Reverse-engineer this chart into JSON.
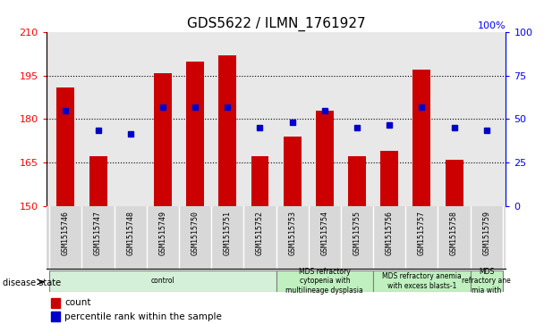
{
  "title": "GDS5622 / ILMN_1761927",
  "samples": [
    "GSM1515746",
    "GSM1515747",
    "GSM1515748",
    "GSM1515749",
    "GSM1515750",
    "GSM1515751",
    "GSM1515752",
    "GSM1515753",
    "GSM1515754",
    "GSM1515755",
    "GSM1515756",
    "GSM1515757",
    "GSM1515758",
    "GSM1515759"
  ],
  "bar_values": [
    191,
    167,
    150,
    196,
    200,
    202,
    167,
    174,
    183,
    167,
    169,
    197,
    166,
    150
  ],
  "bar_bottom": 150,
  "dot_values_left": [
    183,
    176,
    175,
    184,
    184,
    184,
    177,
    179,
    183,
    177,
    178,
    184,
    177,
    176
  ],
  "ylim_left": [
    150,
    210
  ],
  "ylim_right": [
    0,
    100
  ],
  "yticks_left": [
    150,
    165,
    180,
    195,
    210
  ],
  "yticks_right": [
    0,
    25,
    50,
    75,
    100
  ],
  "bar_color": "#cc0000",
  "dot_color": "#0000cc",
  "plot_bg": "#e8e8e8",
  "disease_groups": [
    {
      "label": "control",
      "start": 0,
      "end": 7,
      "color": "#d4f0d8"
    },
    {
      "label": "MDS refractory\ncytopenia with\nmultilineage dysplasia",
      "start": 7,
      "end": 10,
      "color": "#c0f0c0"
    },
    {
      "label": "MDS refractory anemia\nwith excess blasts-1",
      "start": 10,
      "end": 13,
      "color": "#c0f0c0"
    },
    {
      "label": "MDS\nrefractory ane\nmia with",
      "start": 13,
      "end": 14,
      "color": "#c0f0c0"
    }
  ],
  "disease_state_label": "disease state",
  "legend_count": "count",
  "legend_pct": "percentile rank within the sample",
  "background_color": "#ffffff"
}
